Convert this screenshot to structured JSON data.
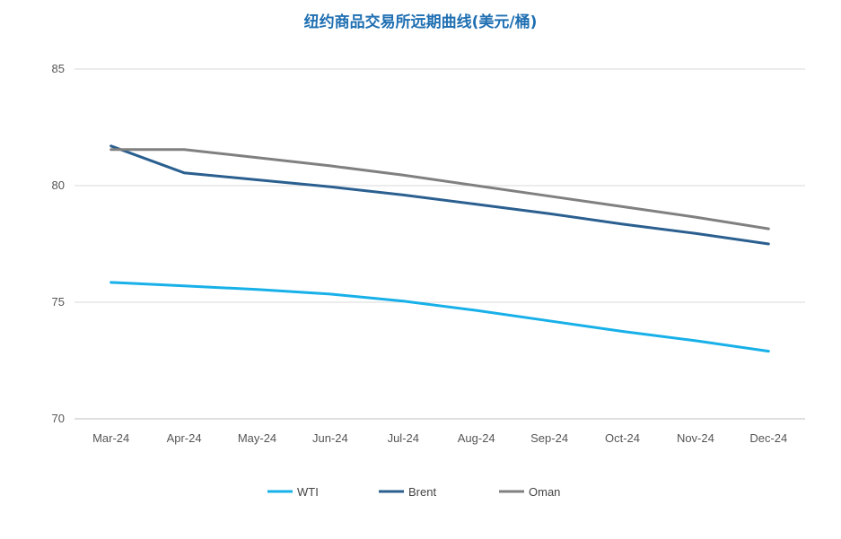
{
  "chart_data": {
    "type": "line",
    "title": "纽约商品交易所远期曲线(美元/桶)",
    "categories": [
      "Mar-24",
      "Apr-24",
      "May-24",
      "Jun-24",
      "Jul-24",
      "Aug-24",
      "Sep-24",
      "Oct-24",
      "Nov-24",
      "Dec-24"
    ],
    "ylim": [
      70,
      85
    ],
    "yticks": [
      70,
      75,
      80,
      85
    ],
    "grid": true,
    "legend_position": "bottom",
    "series": [
      {
        "name": "WTI",
        "color": "#17b0e8",
        "values": [
          75.85,
          75.7,
          75.55,
          75.35,
          75.05,
          74.65,
          74.2,
          73.75,
          73.35,
          72.9
        ]
      },
      {
        "name": "Brent",
        "color": "#2a5f8f",
        "values": [
          81.7,
          80.55,
          80.25,
          79.95,
          79.6,
          79.2,
          78.8,
          78.35,
          77.95,
          77.5
        ]
      },
      {
        "name": "Oman",
        "color": "#808080",
        "values": [
          81.55,
          81.55,
          81.2,
          80.85,
          80.45,
          80.0,
          79.55,
          79.1,
          78.65,
          78.15
        ]
      }
    ]
  }
}
